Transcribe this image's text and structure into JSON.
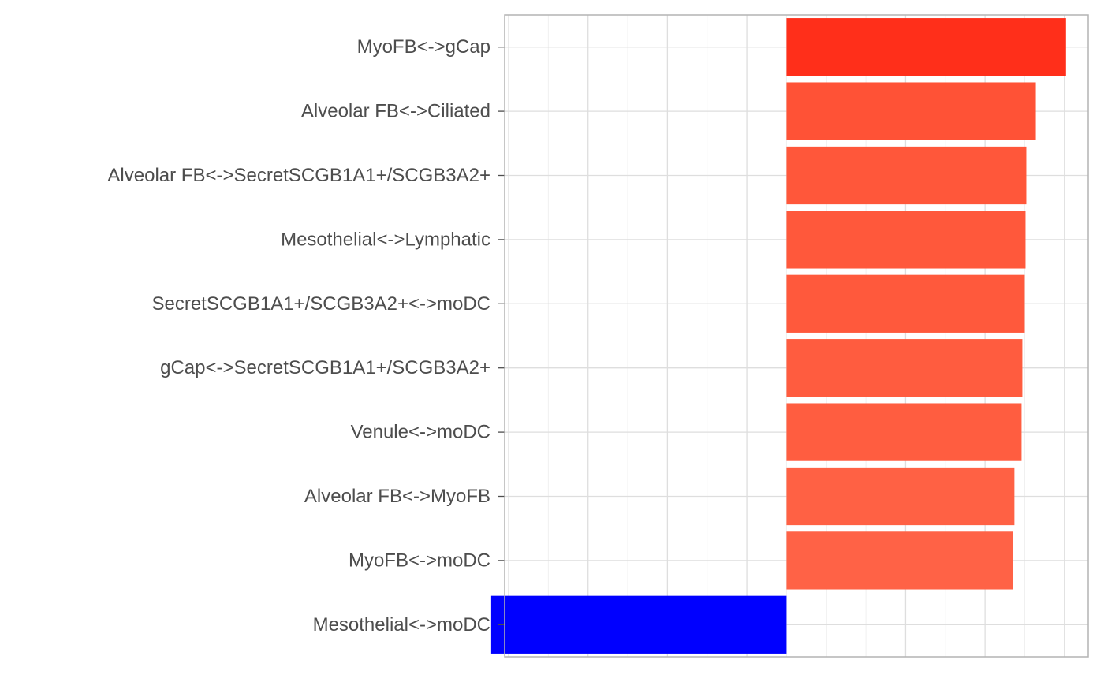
{
  "chart_data": {
    "type": "bar",
    "orientation": "horizontal",
    "title": "",
    "xlabel": "",
    "ylabel": "",
    "x_tick_labels_shown": false,
    "xlim": [
      -3.55,
      3.8
    ],
    "x_gridlines": [
      -3.5,
      -2.5,
      -1.5,
      -0.5,
      0.5,
      1.5,
      2.5,
      3.5
    ],
    "x_minor_gridlines": [
      -3,
      -2,
      -1,
      0,
      1,
      2,
      3
    ],
    "grid": true,
    "legend": "none",
    "categories": [
      "MyoFB<->gCap",
      "Alveolar FB<->Ciliated",
      "Alveolar FB<->SecretSCGB1A1+/SCGB3A2+",
      "Mesothelial<->Lymphatic",
      "SecretSCGB1A1+/SCGB3A2+<->moDC",
      "gCap<->SecretSCGB1A1+/SCGB3A2+",
      "Venule<->moDC",
      "Alveolar FB<->MyoFB",
      "MyoFB<->moDC",
      "Mesothelial<->moDC"
    ],
    "values": [
      3.52,
      3.14,
      3.02,
      3.01,
      3.0,
      2.97,
      2.96,
      2.87,
      2.85,
      -3.72
    ],
    "colors": [
      "#ff2f1a",
      "#ff5236",
      "#ff573a",
      "#ff583b",
      "#ff593c",
      "#ff5c3f",
      "#ff5d40",
      "#ff6144",
      "#ff6246",
      "#0000ff"
    ]
  }
}
